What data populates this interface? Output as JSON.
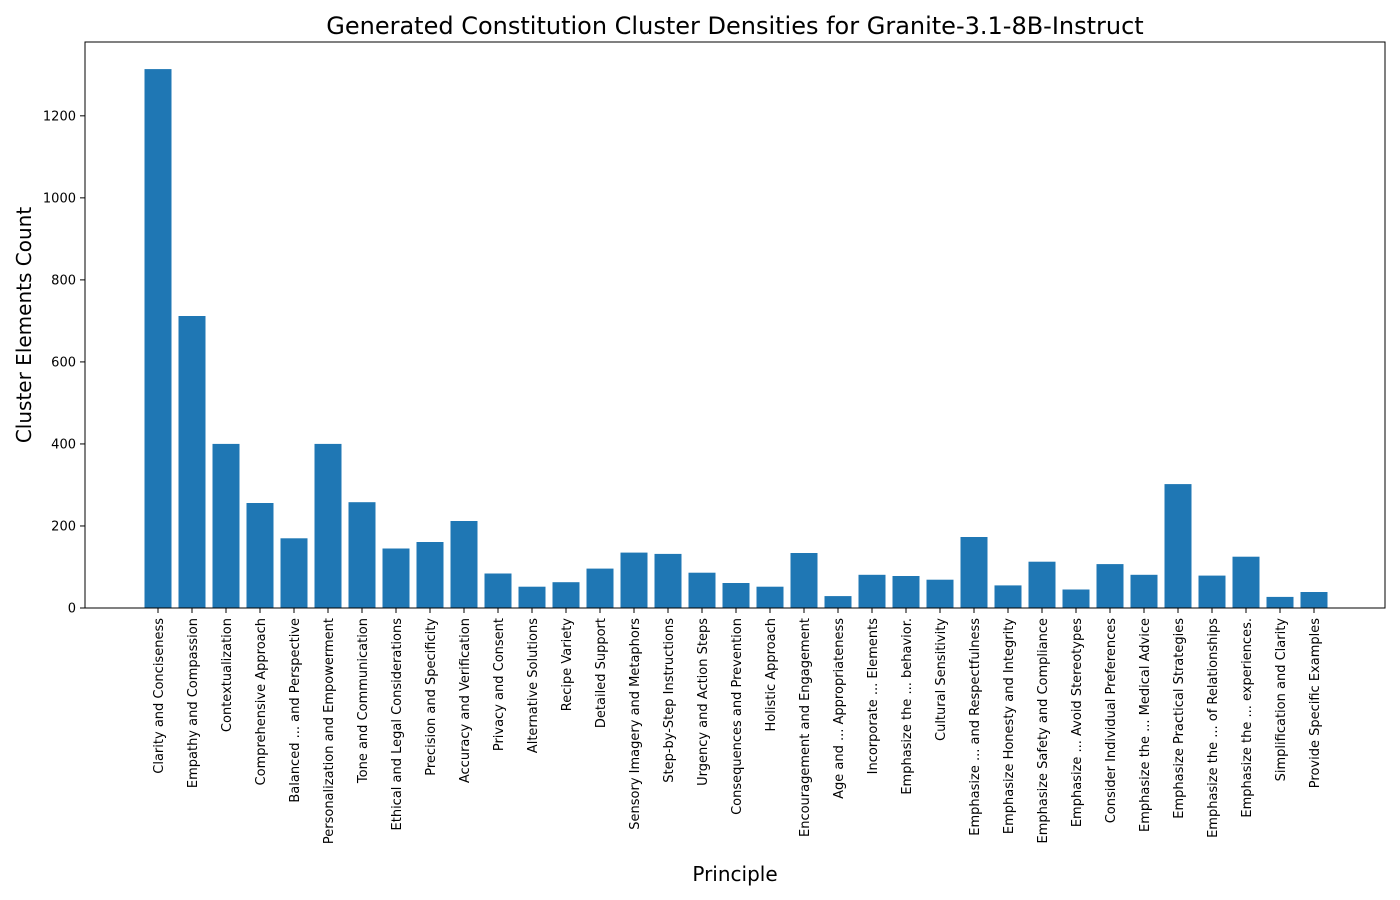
{
  "chart_data": {
    "type": "bar",
    "title": "Generated Constitution Cluster Densities for Granite-3.1-8B-Instruct",
    "xlabel": "Principle",
    "ylabel": "Cluster Elements Count",
    "ylim": [
      0,
      1380
    ],
    "yticks": [
      0,
      200,
      400,
      600,
      800,
      1000,
      1200
    ],
    "grid": false,
    "bar_color": "#1f77b4",
    "categories": [
      "Clarity and Conciseness",
      "Empathy and Compassion",
      "Contextualization",
      "Comprehensive Approach",
      "Balanced ... and Perspective",
      "Personalization and Empowerment",
      "Tone and Communication",
      "Ethical and Legal Considerations",
      "Precision and Specificity",
      "Accuracy and Verification",
      "Privacy and Consent",
      "Alternative Solutions",
      "Recipe Variety",
      "Detailed Support",
      "Sensory Imagery and Metaphors",
      "Step-by-Step Instructions",
      "Urgency and Action Steps",
      "Consequences and Prevention",
      "Holistic Approach",
      "Encouragement and Engagement",
      "Age and ... Appropriateness",
      "Incorporate ... Elements",
      "Emphasize the ... behavior.",
      "Cultural Sensitivity",
      "Emphasize ... and Respectfulness",
      "Emphasize Honesty and Integrity",
      "Emphasize Safety and Compliance",
      "Emphasize ... Avoid Stereotypes",
      "Consider Individual Preferences",
      "Emphasize the ... Medical Advice",
      "Emphasize Practical Strategies",
      "Emphasize the ... of Relationships",
      "Emphasize the ... experiences.",
      "Simplification and Clarity",
      "Provide Specific Examples"
    ],
    "values": [
      1314,
      712,
      400,
      256,
      170,
      400,
      258,
      145,
      161,
      212,
      84,
      52,
      63,
      96,
      135,
      132,
      86,
      61,
      52,
      134,
      29,
      81,
      78,
      69,
      173,
      55,
      113,
      45,
      107,
      81,
      302,
      79,
      125,
      27,
      39
    ]
  }
}
